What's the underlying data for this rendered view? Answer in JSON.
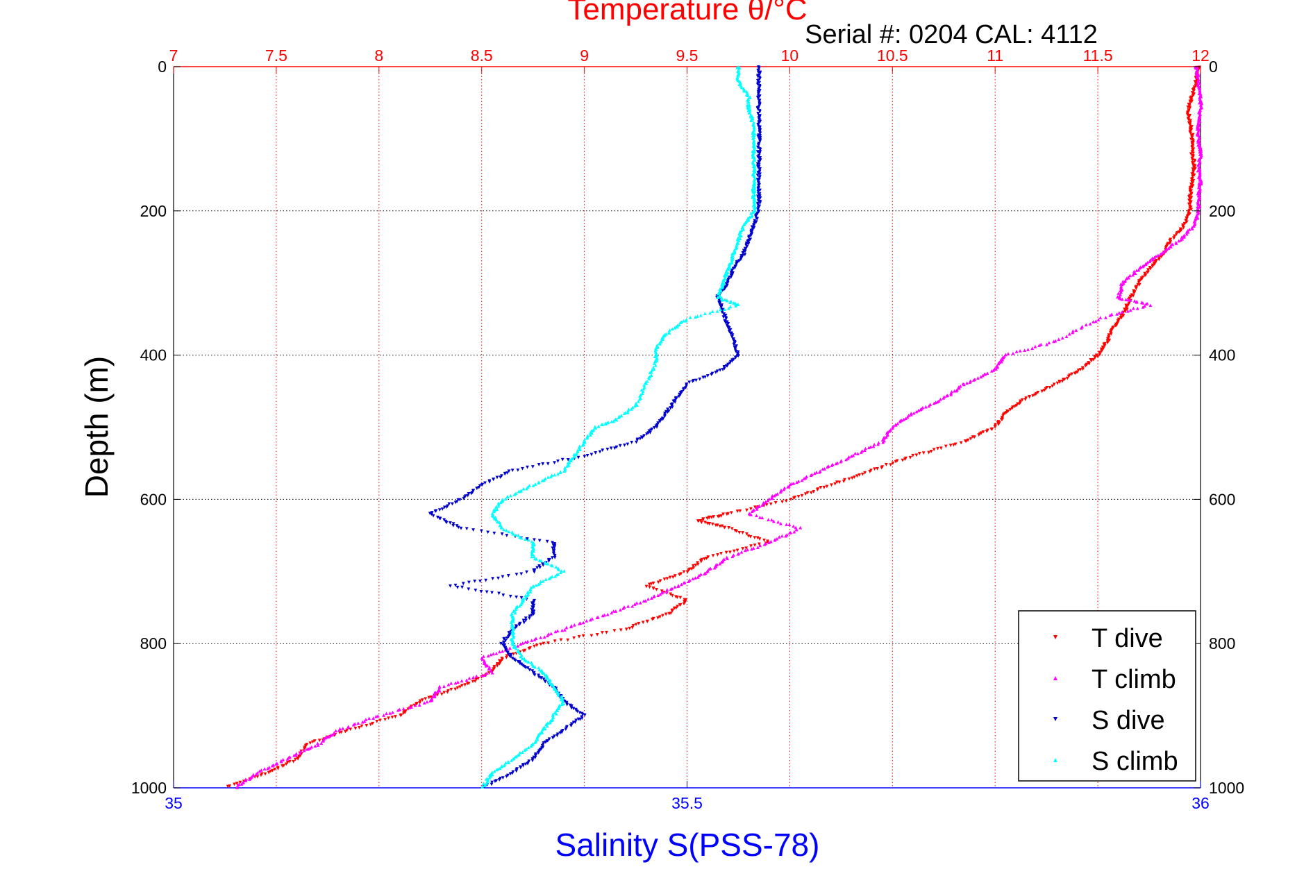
{
  "chart_data": {
    "type": "scatter",
    "title": "Temperature θ/°C",
    "subtitle": "Serial #: 0204  CAL: 4112",
    "xlabel_top": "Temperature θ/°C",
    "xlabel_bottom": "Salinity S(PSS-78)",
    "ylabel": "Depth (m)",
    "ylim": [
      0,
      1000
    ],
    "y_reversed": true,
    "xlim_top": [
      7,
      12
    ],
    "xlim_bottom": [
      35,
      36
    ],
    "yticks": [
      "0",
      "200",
      "400",
      "600",
      "800",
      "1000"
    ],
    "yticks_values": [
      0,
      200,
      400,
      600,
      800,
      1000
    ],
    "xticks_top": [
      "7",
      "7.5",
      "8",
      "8.5",
      "9",
      "9.5",
      "10",
      "10.5",
      "11",
      "11.5",
      "12"
    ],
    "xticks_top_values": [
      7,
      7.5,
      8,
      8.5,
      9,
      9.5,
      10,
      10.5,
      11,
      11.5,
      12
    ],
    "xticks_bottom": [
      "35",
      "35.5",
      "36"
    ],
    "xticks_bottom_values": [
      35,
      35.5,
      36
    ],
    "grid": true,
    "legend_position": "bottom-right",
    "colors": {
      "temperature": "#ff0000",
      "salinity": "#0000ff",
      "t_dive": "#ff0000",
      "t_climb": "#ff00ff",
      "s_dive": "#0000cc",
      "s_climb": "#00ffff"
    },
    "series": [
      {
        "name": "T dive",
        "axis": "top",
        "color": "#ff0000",
        "marker": "triangle-down",
        "points": [
          [
            11.99,
            0
          ],
          [
            11.98,
            20
          ],
          [
            11.96,
            40
          ],
          [
            11.94,
            60
          ],
          [
            11.95,
            80
          ],
          [
            11.96,
            100
          ],
          [
            11.96,
            120
          ],
          [
            11.97,
            140
          ],
          [
            11.96,
            160
          ],
          [
            11.95,
            180
          ],
          [
            11.95,
            200
          ],
          [
            11.92,
            220
          ],
          [
            11.86,
            240
          ],
          [
            11.82,
            260
          ],
          [
            11.75,
            280
          ],
          [
            11.7,
            300
          ],
          [
            11.66,
            320
          ],
          [
            11.63,
            340
          ],
          [
            11.58,
            360
          ],
          [
            11.55,
            380
          ],
          [
            11.5,
            400
          ],
          [
            11.42,
            420
          ],
          [
            11.3,
            440
          ],
          [
            11.15,
            460
          ],
          [
            11.05,
            480
          ],
          [
            11.0,
            500
          ],
          [
            10.85,
            520
          ],
          [
            10.6,
            540
          ],
          [
            10.4,
            560
          ],
          [
            10.2,
            580
          ],
          [
            10.0,
            600
          ],
          [
            9.7,
            620
          ],
          [
            9.55,
            630
          ],
          [
            9.7,
            640
          ],
          [
            9.9,
            660
          ],
          [
            9.6,
            680
          ],
          [
            9.5,
            700
          ],
          [
            9.3,
            720
          ],
          [
            9.5,
            740
          ],
          [
            9.4,
            760
          ],
          [
            9.2,
            780
          ],
          [
            8.8,
            800
          ],
          [
            8.6,
            820
          ],
          [
            8.55,
            840
          ],
          [
            8.4,
            860
          ],
          [
            8.2,
            880
          ],
          [
            8.1,
            900
          ],
          [
            7.85,
            920
          ],
          [
            7.65,
            940
          ],
          [
            7.6,
            960
          ],
          [
            7.45,
            980
          ],
          [
            7.25,
            1000
          ]
        ]
      },
      {
        "name": "T climb",
        "axis": "top",
        "color": "#ff00ff",
        "marker": "triangle-up",
        "points": [
          [
            11.98,
            0
          ],
          [
            11.99,
            20
          ],
          [
            12.0,
            40
          ],
          [
            12.0,
            60
          ],
          [
            11.99,
            80
          ],
          [
            11.99,
            100
          ],
          [
            12.0,
            120
          ],
          [
            11.99,
            140
          ],
          [
            12.0,
            160
          ],
          [
            11.99,
            180
          ],
          [
            11.99,
            200
          ],
          [
            11.97,
            220
          ],
          [
            11.9,
            240
          ],
          [
            11.8,
            260
          ],
          [
            11.7,
            280
          ],
          [
            11.62,
            300
          ],
          [
            11.6,
            320
          ],
          [
            11.75,
            330
          ],
          [
            11.5,
            350
          ],
          [
            11.3,
            380
          ],
          [
            11.05,
            400
          ],
          [
            11.0,
            420
          ],
          [
            10.85,
            440
          ],
          [
            10.75,
            460
          ],
          [
            10.6,
            480
          ],
          [
            10.5,
            500
          ],
          [
            10.45,
            520
          ],
          [
            10.3,
            540
          ],
          [
            10.15,
            560
          ],
          [
            10.0,
            580
          ],
          [
            9.9,
            600
          ],
          [
            9.8,
            620
          ],
          [
            10.05,
            640
          ],
          [
            9.9,
            660
          ],
          [
            9.7,
            680
          ],
          [
            9.6,
            700
          ],
          [
            9.45,
            720
          ],
          [
            9.3,
            740
          ],
          [
            9.1,
            760
          ],
          [
            8.9,
            780
          ],
          [
            8.7,
            800
          ],
          [
            8.5,
            820
          ],
          [
            8.55,
            840
          ],
          [
            8.3,
            860
          ],
          [
            8.25,
            880
          ],
          [
            8.0,
            900
          ],
          [
            7.8,
            920
          ],
          [
            7.7,
            940
          ],
          [
            7.55,
            960
          ],
          [
            7.4,
            980
          ],
          [
            7.3,
            1000
          ]
        ]
      },
      {
        "name": "S dive",
        "axis": "bottom",
        "color": "#0000cc",
        "marker": "triangle-down",
        "points": [
          [
            35.57,
            0
          ],
          [
            35.57,
            20
          ],
          [
            35.57,
            40
          ],
          [
            35.57,
            60
          ],
          [
            35.57,
            80
          ],
          [
            35.57,
            100
          ],
          [
            35.57,
            120
          ],
          [
            35.57,
            140
          ],
          [
            35.57,
            160
          ],
          [
            35.57,
            180
          ],
          [
            35.57,
            200
          ],
          [
            35.565,
            220
          ],
          [
            35.56,
            240
          ],
          [
            35.555,
            260
          ],
          [
            35.545,
            280
          ],
          [
            35.54,
            300
          ],
          [
            35.53,
            320
          ],
          [
            35.535,
            340
          ],
          [
            35.54,
            360
          ],
          [
            35.545,
            380
          ],
          [
            35.55,
            400
          ],
          [
            35.535,
            420
          ],
          [
            35.5,
            440
          ],
          [
            35.49,
            460
          ],
          [
            35.48,
            480
          ],
          [
            35.47,
            500
          ],
          [
            35.45,
            520
          ],
          [
            35.4,
            540
          ],
          [
            35.33,
            560
          ],
          [
            35.3,
            580
          ],
          [
            35.28,
            600
          ],
          [
            35.25,
            620
          ],
          [
            35.28,
            640
          ],
          [
            35.37,
            660
          ],
          [
            35.37,
            680
          ],
          [
            35.35,
            700
          ],
          [
            35.27,
            720
          ],
          [
            35.35,
            740
          ],
          [
            35.35,
            760
          ],
          [
            35.33,
            780
          ],
          [
            35.32,
            800
          ],
          [
            35.33,
            820
          ],
          [
            35.35,
            840
          ],
          [
            35.37,
            860
          ],
          [
            35.38,
            880
          ],
          [
            35.4,
            900
          ],
          [
            35.38,
            920
          ],
          [
            35.36,
            940
          ],
          [
            35.35,
            960
          ],
          [
            35.33,
            980
          ],
          [
            35.3,
            1000
          ]
        ]
      },
      {
        "name": "S climb",
        "axis": "bottom",
        "color": "#00ffff",
        "marker": "triangle-up",
        "points": [
          [
            35.55,
            0
          ],
          [
            35.55,
            20
          ],
          [
            35.56,
            40
          ],
          [
            35.56,
            60
          ],
          [
            35.565,
            80
          ],
          [
            35.565,
            100
          ],
          [
            35.565,
            120
          ],
          [
            35.565,
            140
          ],
          [
            35.565,
            160
          ],
          [
            35.565,
            180
          ],
          [
            35.565,
            200
          ],
          [
            35.555,
            220
          ],
          [
            35.55,
            240
          ],
          [
            35.545,
            260
          ],
          [
            35.54,
            280
          ],
          [
            35.535,
            300
          ],
          [
            35.53,
            320
          ],
          [
            35.55,
            330
          ],
          [
            35.5,
            350
          ],
          [
            35.48,
            370
          ],
          [
            35.47,
            390
          ],
          [
            35.47,
            410
          ],
          [
            35.46,
            440
          ],
          [
            35.45,
            470
          ],
          [
            35.43,
            490
          ],
          [
            35.41,
            500
          ],
          [
            35.4,
            520
          ],
          [
            35.39,
            540
          ],
          [
            35.38,
            560
          ],
          [
            35.35,
            580
          ],
          [
            35.32,
            600
          ],
          [
            35.31,
            620
          ],
          [
            35.32,
            640
          ],
          [
            35.35,
            660
          ],
          [
            35.35,
            680
          ],
          [
            35.38,
            700
          ],
          [
            35.35,
            720
          ],
          [
            35.34,
            740
          ],
          [
            35.33,
            760
          ],
          [
            35.33,
            780
          ],
          [
            35.33,
            800
          ],
          [
            35.34,
            820
          ],
          [
            35.36,
            840
          ],
          [
            35.37,
            860
          ],
          [
            35.38,
            880
          ],
          [
            35.37,
            900
          ],
          [
            35.36,
            920
          ],
          [
            35.35,
            940
          ],
          [
            35.33,
            960
          ],
          [
            35.31,
            980
          ],
          [
            35.3,
            1000
          ]
        ]
      }
    ]
  }
}
